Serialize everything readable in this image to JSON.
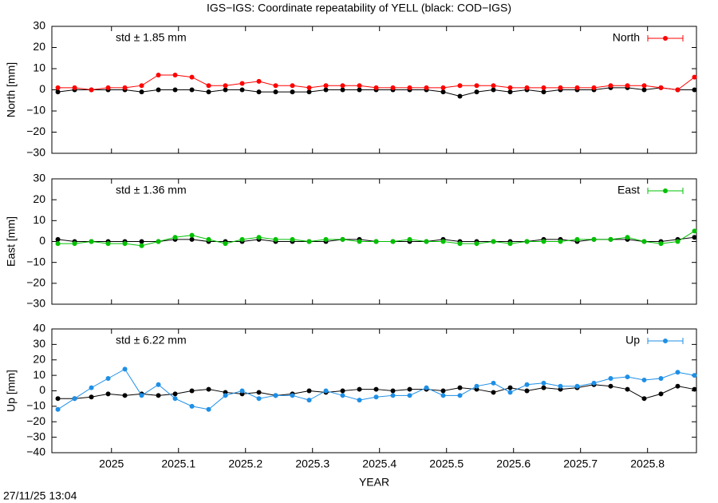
{
  "title": "IGS−IGS: Coordinate repeatability of YELL (black: COD−IGS)",
  "timestamp": "27/11/25 13:04",
  "chart_data": [
    {
      "type": "scatter",
      "ylabel": "North [mm]",
      "annotation": "std ± 1.85 mm",
      "annotation_color": "#ff0000",
      "xlim": [
        2024.911,
        2025.873
      ],
      "xticks": [
        2025,
        2025.1,
        2025.2,
        2025.3,
        2025.4,
        2025.5,
        2025.6,
        2025.7,
        2025.8
      ],
      "ylim": [
        -30,
        30
      ],
      "yticks": [
        {
          "value": -30,
          "label": "−30"
        },
        {
          "value": -20,
          "label": "−20"
        },
        {
          "value": -10,
          "label": "−10"
        },
        0,
        10,
        20,
        30
      ],
      "x": [
        2024.92,
        2024.945,
        2024.97,
        2024.995,
        2025.02,
        2025.045,
        2025.07,
        2025.095,
        2025.12,
        2025.145,
        2025.17,
        2025.195,
        2025.22,
        2025.245,
        2025.27,
        2025.295,
        2025.32,
        2025.345,
        2025.37,
        2025.395,
        2025.42,
        2025.445,
        2025.47,
        2025.495,
        2025.52,
        2025.545,
        2025.57,
        2025.595,
        2025.62,
        2025.645,
        2025.67,
        2025.695,
        2025.72,
        2025.745,
        2025.77,
        2025.795,
        2025.82,
        2025.845,
        2025.87
      ],
      "series": [
        {
          "color": "#000000",
          "values": [
            -1,
            0,
            0,
            0,
            0,
            -1,
            0,
            0,
            0,
            -1,
            0,
            0,
            -1,
            -1,
            -1,
            -1,
            0,
            0,
            0,
            0,
            0,
            0,
            0,
            -1,
            -3,
            -1,
            0,
            -1,
            0,
            -1,
            0,
            0,
            0,
            1,
            1,
            0,
            1,
            0,
            0
          ]
        },
        {
          "name": "North",
          "color": "#ff0000",
          "values": [
            1,
            1,
            0,
            1,
            1,
            2,
            7,
            7,
            6,
            2,
            2,
            3,
            4,
            2,
            2,
            1,
            2,
            2,
            2,
            1,
            1,
            1,
            1,
            1,
            2,
            2,
            2,
            1,
            1,
            1,
            1,
            1,
            1,
            2,
            2,
            2,
            1,
            0,
            6
          ]
        }
      ]
    },
    {
      "type": "scatter",
      "ylabel": "East [mm]",
      "annotation": "std ± 1.36 mm",
      "annotation_color": "#00c000",
      "xlim": [
        2024.911,
        2025.873
      ],
      "xticks": [
        2025,
        2025.1,
        2025.2,
        2025.3,
        2025.4,
        2025.5,
        2025.6,
        2025.7,
        2025.8
      ],
      "ylim": [
        -30,
        30
      ],
      "yticks": [
        {
          "value": -30,
          "label": "−30"
        },
        {
          "value": -20,
          "label": "−20"
        },
        {
          "value": -10,
          "label": "−10"
        },
        0,
        10,
        20,
        30
      ],
      "x": [
        2024.92,
        2024.945,
        2024.97,
        2024.995,
        2025.02,
        2025.045,
        2025.07,
        2025.095,
        2025.12,
        2025.145,
        2025.17,
        2025.195,
        2025.22,
        2025.245,
        2025.27,
        2025.295,
        2025.32,
        2025.345,
        2025.37,
        2025.395,
        2025.42,
        2025.445,
        2025.47,
        2025.495,
        2025.52,
        2025.545,
        2025.57,
        2025.595,
        2025.62,
        2025.645,
        2025.67,
        2025.695,
        2025.72,
        2025.745,
        2025.77,
        2025.795,
        2025.82,
        2025.845,
        2025.87
      ],
      "series": [
        {
          "color": "#000000",
          "values": [
            1,
            0,
            0,
            0,
            0,
            0,
            0,
            1,
            1,
            0,
            0,
            0,
            1,
            0,
            0,
            0,
            0,
            1,
            1,
            0,
            0,
            0,
            0,
            1,
            0,
            0,
            0,
            0,
            0,
            1,
            1,
            0,
            1,
            1,
            1,
            0,
            0,
            1,
            2
          ]
        },
        {
          "name": "East",
          "color": "#00c000",
          "values": [
            -1,
            -1,
            0,
            -1,
            -1,
            -2,
            0,
            2,
            3,
            1,
            -1,
            1,
            2,
            1,
            1,
            0,
            1,
            1,
            0,
            0,
            0,
            1,
            0,
            0,
            -1,
            -1,
            0,
            -1,
            0,
            0,
            0,
            1,
            1,
            1,
            2,
            0,
            -1,
            0,
            5
          ]
        }
      ]
    },
    {
      "type": "scatter",
      "ylabel": "Up [mm]",
      "xlabel": "YEAR",
      "annotation": "std ± 6.22 mm",
      "annotation_color": "#1e8fe6",
      "xlim": [
        2024.911,
        2025.873
      ],
      "xticks": [
        2025,
        2025.1,
        2025.2,
        2025.3,
        2025.4,
        2025.5,
        2025.6,
        2025.7,
        2025.8
      ],
      "ylim": [
        -40,
        40
      ],
      "yticks": [
        {
          "value": -40,
          "label": "−40"
        },
        {
          "value": -30,
          "label": "−30"
        },
        {
          "value": -20,
          "label": "−20"
        },
        {
          "value": -10,
          "label": "−10"
        },
        0,
        10,
        20,
        30,
        40
      ],
      "x": [
        2024.92,
        2024.945,
        2024.97,
        2024.995,
        2025.02,
        2025.045,
        2025.07,
        2025.095,
        2025.12,
        2025.145,
        2025.17,
        2025.195,
        2025.22,
        2025.245,
        2025.27,
        2025.295,
        2025.32,
        2025.345,
        2025.37,
        2025.395,
        2025.42,
        2025.445,
        2025.47,
        2025.495,
        2025.52,
        2025.545,
        2025.57,
        2025.595,
        2025.62,
        2025.645,
        2025.67,
        2025.695,
        2025.72,
        2025.745,
        2025.77,
        2025.795,
        2025.82,
        2025.845,
        2025.87
      ],
      "series": [
        {
          "color": "#000000",
          "values": [
            -5,
            -5,
            -4,
            -2,
            -3,
            -2,
            -3,
            -2,
            0,
            1,
            -1,
            -2,
            -1,
            -3,
            -2,
            0,
            -1,
            0,
            1,
            1,
            0,
            1,
            1,
            0,
            2,
            1,
            -1,
            2,
            0,
            2,
            1,
            2,
            4,
            3,
            1,
            -5,
            -2,
            3,
            1
          ]
        },
        {
          "name": "Up",
          "color": "#1e8fe6",
          "values": [
            -12,
            -5,
            2,
            8,
            14,
            -3,
            4,
            -5,
            -10,
            -12,
            -3,
            0,
            -5,
            -3,
            -3,
            -6,
            0,
            -3,
            -6,
            -4,
            -3,
            -3,
            2,
            -3,
            -3,
            3,
            5,
            -1,
            4,
            5,
            3,
            3,
            5,
            8,
            9,
            7,
            8,
            12,
            10
          ]
        }
      ]
    }
  ]
}
